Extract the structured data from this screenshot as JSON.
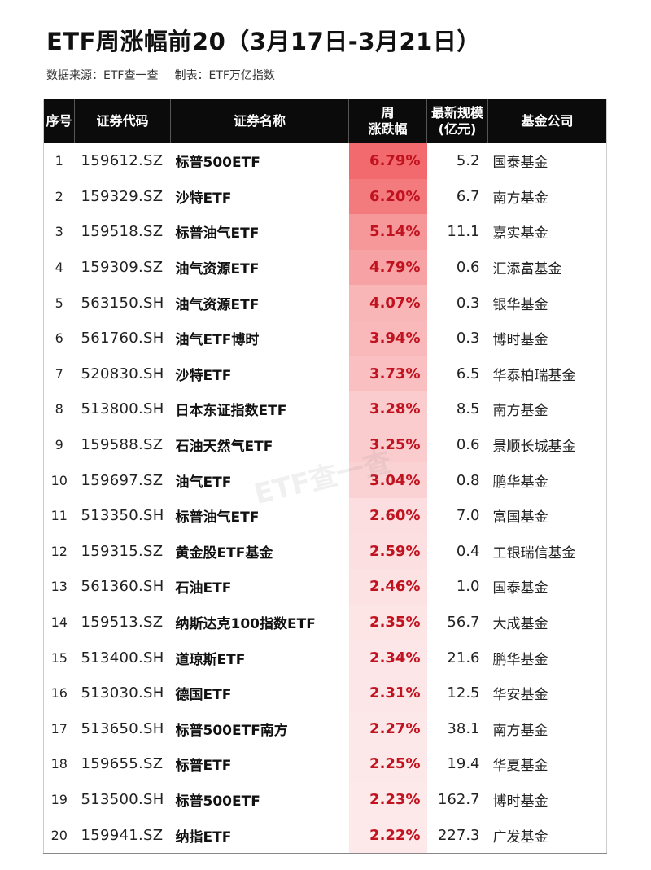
{
  "title": "ETF周涨幅前20（3月17日-3月21日）",
  "source": "数据来源：ETF查一查",
  "maker": "制表：ETF万亿指数",
  "watermark": "ETF查一查",
  "colors": {
    "header_bg": "#0b0b0b",
    "change_text": "#c1121f",
    "change_bar_max": "#f26a6d",
    "change_bar_min": "#fde9ea"
  },
  "table": {
    "headers": {
      "index": "序号",
      "code": "证券代码",
      "name": "证券名称",
      "change_1": "周",
      "change_2": "涨跌幅",
      "size_1": "最新规模",
      "size_2": "(亿元)",
      "fund": "基金公司"
    },
    "rows": [
      {
        "index": "1",
        "code": "159612.SZ",
        "name": "标普500ETF",
        "change": "6.79%",
        "size": "5.2",
        "fund": "国泰基金"
      },
      {
        "index": "2",
        "code": "159329.SZ",
        "name": "沙特ETF",
        "change": "6.20%",
        "size": "6.7",
        "fund": "南方基金"
      },
      {
        "index": "3",
        "code": "159518.SZ",
        "name": "标普油气ETF",
        "change": "5.14%",
        "size": "11.1",
        "fund": "嘉实基金"
      },
      {
        "index": "4",
        "code": "159309.SZ",
        "name": "油气资源ETF",
        "change": "4.79%",
        "size": "0.6",
        "fund": "汇添富基金"
      },
      {
        "index": "5",
        "code": "563150.SH",
        "name": "油气资源ETF",
        "change": "4.07%",
        "size": "0.3",
        "fund": "银华基金"
      },
      {
        "index": "6",
        "code": "561760.SH",
        "name": "油气ETF博时",
        "change": "3.94%",
        "size": "0.3",
        "fund": "博时基金"
      },
      {
        "index": "7",
        "code": "520830.SH",
        "name": "沙特ETF",
        "change": "3.73%",
        "size": "6.5",
        "fund": "华泰柏瑞基金"
      },
      {
        "index": "8",
        "code": "513800.SH",
        "name": "日本东证指数ETF",
        "change": "3.28%",
        "size": "8.5",
        "fund": "南方基金"
      },
      {
        "index": "9",
        "code": "159588.SZ",
        "name": "石油天然气ETF",
        "change": "3.25%",
        "size": "0.6",
        "fund": "景顺长城基金"
      },
      {
        "index": "10",
        "code": "159697.SZ",
        "name": "油气ETF",
        "change": "3.04%",
        "size": "0.8",
        "fund": "鹏华基金"
      },
      {
        "index": "11",
        "code": "513350.SH",
        "name": "标普油气ETF",
        "change": "2.60%",
        "size": "7.0",
        "fund": "富国基金"
      },
      {
        "index": "12",
        "code": "159315.SZ",
        "name": "黄金股ETF基金",
        "change": "2.59%",
        "size": "0.4",
        "fund": "工银瑞信基金"
      },
      {
        "index": "13",
        "code": "561360.SH",
        "name": "石油ETF",
        "change": "2.46%",
        "size": "1.0",
        "fund": "国泰基金"
      },
      {
        "index": "14",
        "code": "159513.SZ",
        "name": "纳斯达克100指数ETF",
        "change": "2.35%",
        "size": "56.7",
        "fund": "大成基金"
      },
      {
        "index": "15",
        "code": "513400.SH",
        "name": "道琼斯ETF",
        "change": "2.34%",
        "size": "21.6",
        "fund": "鹏华基金"
      },
      {
        "index": "16",
        "code": "513030.SH",
        "name": "德国ETF",
        "change": "2.31%",
        "size": "12.5",
        "fund": "华安基金"
      },
      {
        "index": "17",
        "code": "513650.SH",
        "name": "标普500ETF南方",
        "change": "2.27%",
        "size": "38.1",
        "fund": "南方基金"
      },
      {
        "index": "18",
        "code": "159655.SZ",
        "name": "标普ETF",
        "change": "2.25%",
        "size": "19.4",
        "fund": "华夏基金"
      },
      {
        "index": "19",
        "code": "513500.SH",
        "name": "标普500ETF",
        "change": "2.23%",
        "size": "162.7",
        "fund": "博时基金"
      },
      {
        "index": "20",
        "code": "159941.SZ",
        "name": "纳指ETF",
        "change": "2.22%",
        "size": "227.3",
        "fund": "广发基金"
      }
    ]
  }
}
